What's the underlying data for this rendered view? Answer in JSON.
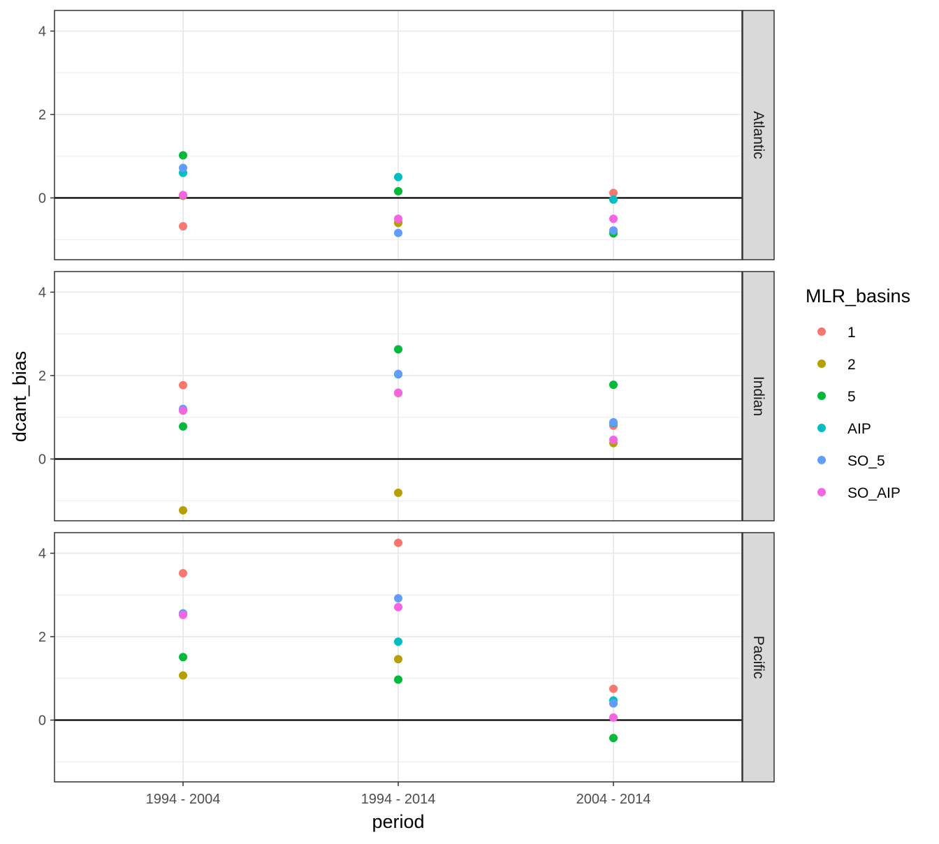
{
  "chart_data": {
    "type": "scatter",
    "xlabel": "period",
    "ylabel": "dcant_bias",
    "categories": [
      "1994 - 2004",
      "1994 - 2014",
      "2004 - 2014"
    ],
    "ylim": [
      -1.4,
      4.5
    ],
    "yticks": [
      0,
      2,
      4
    ],
    "grid": true,
    "hline_y": 0,
    "legend": {
      "title": "MLR_basins",
      "placement": "right",
      "entries": [
        "1",
        "2",
        "5",
        "AIP",
        "SO_5",
        "SO_AIP"
      ]
    },
    "colors": {
      "1": "#F8766D",
      "2": "#B79F00",
      "5": "#00BA38",
      "AIP": "#00BFC4",
      "SO_5": "#619CFF",
      "SO_AIP": "#F564E3"
    },
    "panels": [
      {
        "label": "Atlantic",
        "series": [
          {
            "name": "1",
            "values": [
              -0.68,
              -0.58,
              0.12
            ]
          },
          {
            "name": "2",
            "values": [
              0.05,
              -0.6,
              -0.82
            ]
          },
          {
            "name": "5",
            "values": [
              1.02,
              0.16,
              -0.85
            ]
          },
          {
            "name": "AIP",
            "values": [
              0.6,
              0.5,
              -0.04
            ]
          },
          {
            "name": "SO_5",
            "values": [
              0.72,
              -0.84,
              -0.78
            ]
          },
          {
            "name": "SO_AIP",
            "values": [
              0.07,
              -0.5,
              -0.5
            ]
          }
        ]
      },
      {
        "label": "Indian",
        "series": [
          {
            "name": "1",
            "values": [
              1.77,
              1.58,
              0.8
            ]
          },
          {
            "name": "2",
            "values": [
              -1.23,
              -0.81,
              0.38
            ]
          },
          {
            "name": "5",
            "values": [
              0.78,
              2.63,
              1.78
            ]
          },
          {
            "name": "AIP",
            "values": [
              1.18,
              2.03,
              0.86
            ]
          },
          {
            "name": "SO_5",
            "values": [
              1.2,
              2.04,
              0.88
            ]
          },
          {
            "name": "SO_AIP",
            "values": [
              1.16,
              1.59,
              0.46
            ]
          }
        ]
      },
      {
        "label": "Pacific",
        "series": [
          {
            "name": "1",
            "values": [
              3.52,
              4.25,
              0.75
            ]
          },
          {
            "name": "2",
            "values": [
              1.07,
              1.46,
              0.4
            ]
          },
          {
            "name": "5",
            "values": [
              1.51,
              0.97,
              -0.43
            ]
          },
          {
            "name": "AIP",
            "values": [
              2.55,
              1.88,
              0.47
            ]
          },
          {
            "name": "SO_5",
            "values": [
              2.56,
              2.92,
              0.4
            ]
          },
          {
            "name": "SO_AIP",
            "values": [
              2.52,
              2.71,
              0.06
            ]
          }
        ]
      }
    ]
  }
}
